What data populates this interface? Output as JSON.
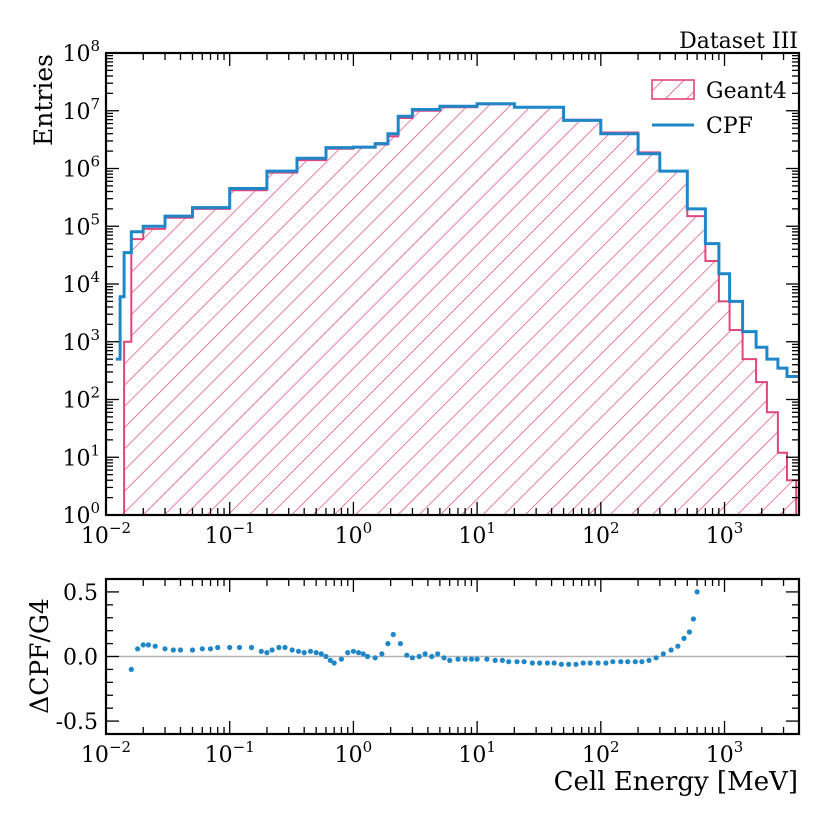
{
  "chart_data": [
    {
      "type": "line",
      "title": "Dataset III",
      "xlabel": "",
      "ylabel": "Entries",
      "x_scale": "log",
      "y_scale": "log",
      "xlim": [
        0.01,
        4000
      ],
      "ylim": [
        1,
        100000000
      ],
      "x_ticks": [
        {
          "value": 0.01,
          "base": "10",
          "exp": "−2"
        },
        {
          "value": 0.1,
          "base": "10",
          "exp": "−1"
        },
        {
          "value": 1,
          "base": "10",
          "exp": "0"
        },
        {
          "value": 10,
          "base": "10",
          "exp": "1"
        },
        {
          "value": 100,
          "base": "10",
          "exp": "2"
        },
        {
          "value": 1000,
          "base": "10",
          "exp": "3"
        }
      ],
      "y_ticks": [
        {
          "value": 1,
          "base": "10",
          "exp": "0"
        },
        {
          "value": 10,
          "base": "10",
          "exp": "1"
        },
        {
          "value": 100,
          "base": "10",
          "exp": "2"
        },
        {
          "value": 1000,
          "base": "10",
          "exp": "3"
        },
        {
          "value": 10000,
          "base": "10",
          "exp": "4"
        },
        {
          "value": 100000,
          "base": "10",
          "exp": "5"
        },
        {
          "value": 1000000,
          "base": "10",
          "exp": "6"
        },
        {
          "value": 10000000,
          "base": "10",
          "exp": "7"
        },
        {
          "value": 100000000,
          "base": "10",
          "exp": "8"
        }
      ],
      "legend_position": "top-right",
      "series": [
        {
          "name": "Geant4",
          "style": "hatched-step",
          "color": "#e0457b",
          "points": [
            [
              0.013,
              1
            ],
            [
              0.014,
              1000
            ],
            [
              0.016,
              60000
            ],
            [
              0.02,
              90000
            ],
            [
              0.03,
              140000
            ],
            [
              0.05,
              200000
            ],
            [
              0.1,
              420000
            ],
            [
              0.2,
              850000
            ],
            [
              0.35,
              1400000
            ],
            [
              0.6,
              2200000
            ],
            [
              1,
              2300000
            ],
            [
              1.5,
              2600000
            ],
            [
              1.9,
              3600000
            ],
            [
              2.3,
              7500000
            ],
            [
              3,
              10000000
            ],
            [
              5,
              11500000
            ],
            [
              10,
              13000000
            ],
            [
              20,
              11500000
            ],
            [
              50,
              7000000
            ],
            [
              100,
              4200000
            ],
            [
              200,
              1900000
            ],
            [
              300,
              900000
            ],
            [
              500,
              150000
            ],
            [
              700,
              25000
            ],
            [
              900,
              5000
            ],
            [
              1100,
              1600
            ],
            [
              1400,
              500
            ],
            [
              1800,
              200
            ],
            [
              2200,
              60
            ],
            [
              2700,
              12
            ],
            [
              3200,
              4
            ],
            [
              3800,
              1
            ],
            [
              4000,
              1
            ]
          ]
        },
        {
          "name": "CPF",
          "style": "step",
          "color": "#1f86c8",
          "points": [
            [
              0.012,
              500
            ],
            [
              0.013,
              6000
            ],
            [
              0.014,
              35000
            ],
            [
              0.016,
              80000
            ],
            [
              0.02,
              100000
            ],
            [
              0.03,
              150000
            ],
            [
              0.05,
              210000
            ],
            [
              0.1,
              450000
            ],
            [
              0.2,
              900000
            ],
            [
              0.35,
              1500000
            ],
            [
              0.6,
              2300000
            ],
            [
              1,
              2350000
            ],
            [
              1.5,
              2700000
            ],
            [
              1.9,
              4000000
            ],
            [
              2.3,
              8000000
            ],
            [
              3,
              10500000
            ],
            [
              5,
              12000000
            ],
            [
              10,
              13200000
            ],
            [
              20,
              11500000
            ],
            [
              50,
              6800000
            ],
            [
              100,
              4000000
            ],
            [
              200,
              1800000
            ],
            [
              300,
              900000
            ],
            [
              500,
              200000
            ],
            [
              700,
              50000
            ],
            [
              900,
              15000
            ],
            [
              1100,
              5000
            ],
            [
              1400,
              1500
            ],
            [
              1800,
              800
            ],
            [
              2200,
              500
            ],
            [
              2700,
              350
            ],
            [
              3200,
              250
            ],
            [
              4000,
              180
            ]
          ]
        }
      ]
    },
    {
      "type": "scatter",
      "title": "",
      "xlabel": "Cell Energy [MeV]",
      "ylabel": "ΔCPF/G4",
      "x_scale": "log",
      "xlim": [
        0.01,
        4000
      ],
      "ylim": [
        -0.6,
        0.6
      ],
      "reference_line": 0,
      "x_ticks": [
        {
          "value": 0.01,
          "base": "10",
          "exp": "−2"
        },
        {
          "value": 0.1,
          "base": "10",
          "exp": "−1"
        },
        {
          "value": 1,
          "base": "10",
          "exp": "0"
        },
        {
          "value": 10,
          "base": "10",
          "exp": "1"
        },
        {
          "value": 100,
          "base": "10",
          "exp": "2"
        },
        {
          "value": 1000,
          "base": "10",
          "exp": "3"
        }
      ],
      "y_ticks": [
        {
          "value": 0.5,
          "label": "0.5"
        },
        {
          "value": 0,
          "label": "0.0"
        },
        {
          "value": -0.5,
          "label": "-0.5"
        }
      ],
      "series": [
        {
          "name": "ΔCPF/G4",
          "color": "#1f86c8",
          "points": [
            [
              0.016,
              -0.1
            ],
            [
              0.018,
              0.06
            ],
            [
              0.02,
              0.09
            ],
            [
              0.022,
              0.09
            ],
            [
              0.025,
              0.08
            ],
            [
              0.03,
              0.06
            ],
            [
              0.035,
              0.05
            ],
            [
              0.04,
              0.05
            ],
            [
              0.05,
              0.05
            ],
            [
              0.06,
              0.06
            ],
            [
              0.07,
              0.06
            ],
            [
              0.08,
              0.07
            ],
            [
              0.1,
              0.07
            ],
            [
              0.12,
              0.07
            ],
            [
              0.15,
              0.07
            ],
            [
              0.18,
              0.04
            ],
            [
              0.2,
              0.03
            ],
            [
              0.22,
              0.05
            ],
            [
              0.25,
              0.07
            ],
            [
              0.28,
              0.07
            ],
            [
              0.32,
              0.05
            ],
            [
              0.36,
              0.04
            ],
            [
              0.4,
              0.03
            ],
            [
              0.45,
              0.04
            ],
            [
              0.5,
              0.03
            ],
            [
              0.55,
              0.02
            ],
            [
              0.6,
              0.0
            ],
            [
              0.65,
              -0.03
            ],
            [
              0.7,
              -0.05
            ],
            [
              0.8,
              -0.02
            ],
            [
              0.9,
              0.03
            ],
            [
              1.0,
              0.04
            ],
            [
              1.1,
              0.03
            ],
            [
              1.2,
              0.02
            ],
            [
              1.3,
              0.0
            ],
            [
              1.5,
              -0.01
            ],
            [
              1.7,
              0.02
            ],
            [
              1.9,
              0.1
            ],
            [
              2.1,
              0.17
            ],
            [
              2.4,
              0.1
            ],
            [
              2.7,
              0.01
            ],
            [
              3.0,
              -0.01
            ],
            [
              3.4,
              0.0
            ],
            [
              3.8,
              0.02
            ],
            [
              4.3,
              0.0
            ],
            [
              4.8,
              0.02
            ],
            [
              5.4,
              -0.01
            ],
            [
              6,
              -0.03
            ],
            [
              7,
              -0.02
            ],
            [
              8,
              -0.02
            ],
            [
              9,
              -0.02
            ],
            [
              10,
              -0.02
            ],
            [
              12,
              -0.02
            ],
            [
              14,
              -0.03
            ],
            [
              16,
              -0.03
            ],
            [
              18,
              -0.04
            ],
            [
              21,
              -0.04
            ],
            [
              24,
              -0.04
            ],
            [
              28,
              -0.05
            ],
            [
              32,
              -0.05
            ],
            [
              37,
              -0.05
            ],
            [
              42,
              -0.05
            ],
            [
              48,
              -0.06
            ],
            [
              55,
              -0.06
            ],
            [
              63,
              -0.06
            ],
            [
              72,
              -0.05
            ],
            [
              82,
              -0.05
            ],
            [
              95,
              -0.05
            ],
            [
              110,
              -0.05
            ],
            [
              125,
              -0.04
            ],
            [
              145,
              -0.04
            ],
            [
              165,
              -0.04
            ],
            [
              190,
              -0.04
            ],
            [
              215,
              -0.04
            ],
            [
              245,
              -0.03
            ],
            [
              280,
              -0.01
            ],
            [
              320,
              0.02
            ],
            [
              370,
              0.05
            ],
            [
              420,
              0.08
            ],
            [
              470,
              0.14
            ],
            [
              520,
              0.19
            ],
            [
              560,
              0.29
            ],
            [
              600,
              0.5
            ]
          ]
        }
      ]
    }
  ]
}
